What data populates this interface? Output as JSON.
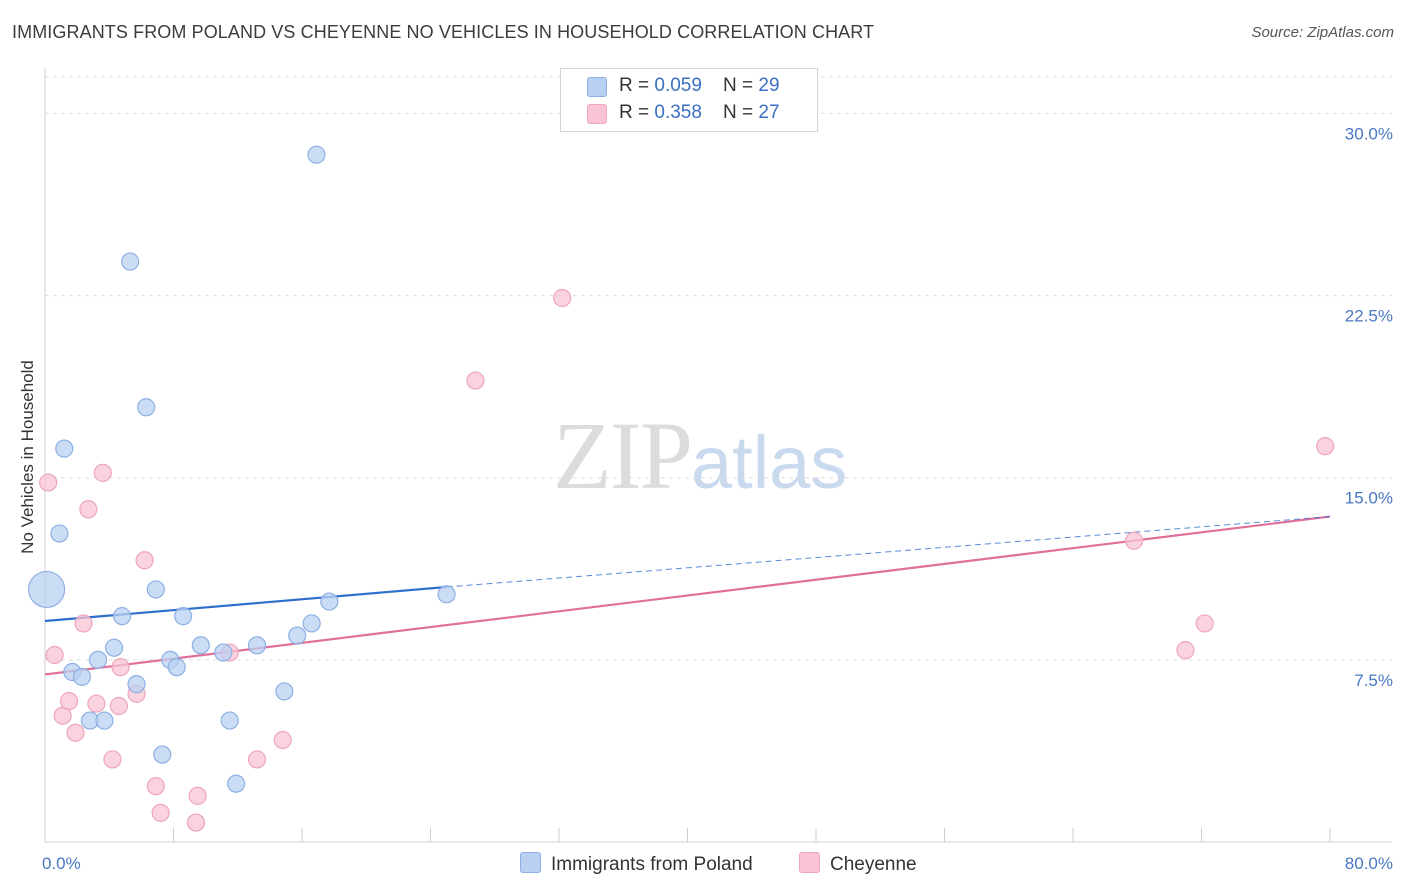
{
  "title": "IMMIGRANTS FROM POLAND VS CHEYENNE NO VEHICLES IN HOUSEHOLD CORRELATION CHART",
  "source": "Source: ZipAtlas.com",
  "watermark": {
    "zip": "ZIP",
    "atlas": "atlas"
  },
  "legend": {
    "rows": [
      {
        "r_label": "R = ",
        "r_value": "0.059",
        "n_label": "N = ",
        "n_value": "29"
      },
      {
        "r_label": "R = ",
        "r_value": "0.358",
        "n_label": "N = ",
        "n_value": "27"
      }
    ]
  },
  "bottom_legend": {
    "series1": "Immigrants from Poland",
    "series2": "Cheyenne"
  },
  "colors": {
    "blue_fill": "#b9d0f2",
    "blue_stroke": "#8db0e4",
    "blue_line": "#2f6fcc",
    "pink_fill": "#f8c4d3",
    "pink_stroke": "#eea5ba",
    "pink_line": "#e0709a",
    "grid": "#dddddd",
    "tick_text": "#4a78c2"
  },
  "chart_data": {
    "type": "scatter",
    "title": "IMMIGRANTS FROM POLAND VS CHEYENNE NO VEHICLES IN HOUSEHOLD CORRELATION CHART",
    "xlabel": "",
    "ylabel": "No Vehicles in Household",
    "xlim": [
      0,
      80
    ],
    "ylim": [
      0,
      31.5
    ],
    "x_tick_labels": [
      "0.0%",
      "80.0%"
    ],
    "y_ticks": [
      7.5,
      15.0,
      22.5,
      30.0
    ],
    "y_tick_labels": [
      "7.5%",
      "15.0%",
      "22.5%",
      "30.0%"
    ],
    "grid": true,
    "series": [
      {
        "name": "Immigrants from Poland",
        "points": [
          [
            0.1,
            10.4,
            "large"
          ],
          [
            0.9,
            12.7
          ],
          [
            1.2,
            16.2
          ],
          [
            1.7,
            7.0
          ],
          [
            2.3,
            6.8
          ],
          [
            2.8,
            5.0
          ],
          [
            3.3,
            7.5
          ],
          [
            3.7,
            5.0
          ],
          [
            4.3,
            8.0
          ],
          [
            4.8,
            9.3
          ],
          [
            5.3,
            23.9
          ],
          [
            5.7,
            6.5
          ],
          [
            6.3,
            17.9
          ],
          [
            6.9,
            10.4
          ],
          [
            7.3,
            3.6
          ],
          [
            7.8,
            7.5
          ],
          [
            8.2,
            7.2
          ],
          [
            8.6,
            9.3
          ],
          [
            9.7,
            8.1
          ],
          [
            11.1,
            7.8
          ],
          [
            11.5,
            5.0
          ],
          [
            11.9,
            2.4
          ],
          [
            13.2,
            8.1
          ],
          [
            14.9,
            6.2
          ],
          [
            15.7,
            8.5
          ],
          [
            16.6,
            9.0
          ],
          [
            16.9,
            28.3
          ],
          [
            17.7,
            9.9
          ],
          [
            25.0,
            10.2
          ]
        ],
        "trend": {
          "x": [
            0,
            25
          ],
          "y": [
            9.1,
            10.5
          ]
        },
        "trend_extension": {
          "x": [
            25,
            80
          ],
          "y": [
            10.5,
            13.4
          ]
        }
      },
      {
        "name": "Cheyenne",
        "points": [
          [
            0.2,
            14.8
          ],
          [
            0.6,
            7.7
          ],
          [
            1.1,
            5.2
          ],
          [
            1.5,
            5.8
          ],
          [
            1.9,
            4.5
          ],
          [
            2.4,
            9.0
          ],
          [
            2.7,
            13.7
          ],
          [
            3.2,
            5.7
          ],
          [
            3.6,
            15.2
          ],
          [
            4.2,
            3.4
          ],
          [
            4.7,
            7.2
          ],
          [
            4.6,
            5.6
          ],
          [
            5.7,
            6.1
          ],
          [
            6.2,
            11.6
          ],
          [
            6.9,
            2.3
          ],
          [
            7.2,
            1.2
          ],
          [
            9.5,
            1.9
          ],
          [
            9.4,
            0.8
          ],
          [
            11.5,
            7.8
          ],
          [
            13.2,
            3.4
          ],
          [
            14.8,
            4.2
          ],
          [
            26.8,
            19.0
          ],
          [
            32.2,
            22.4
          ],
          [
            67.8,
            12.4
          ],
          [
            71.0,
            7.9
          ],
          [
            72.2,
            9.0
          ],
          [
            79.7,
            16.3
          ]
        ],
        "trend": {
          "x": [
            0,
            80
          ],
          "y": [
            6.9,
            13.4
          ]
        }
      }
    ]
  }
}
